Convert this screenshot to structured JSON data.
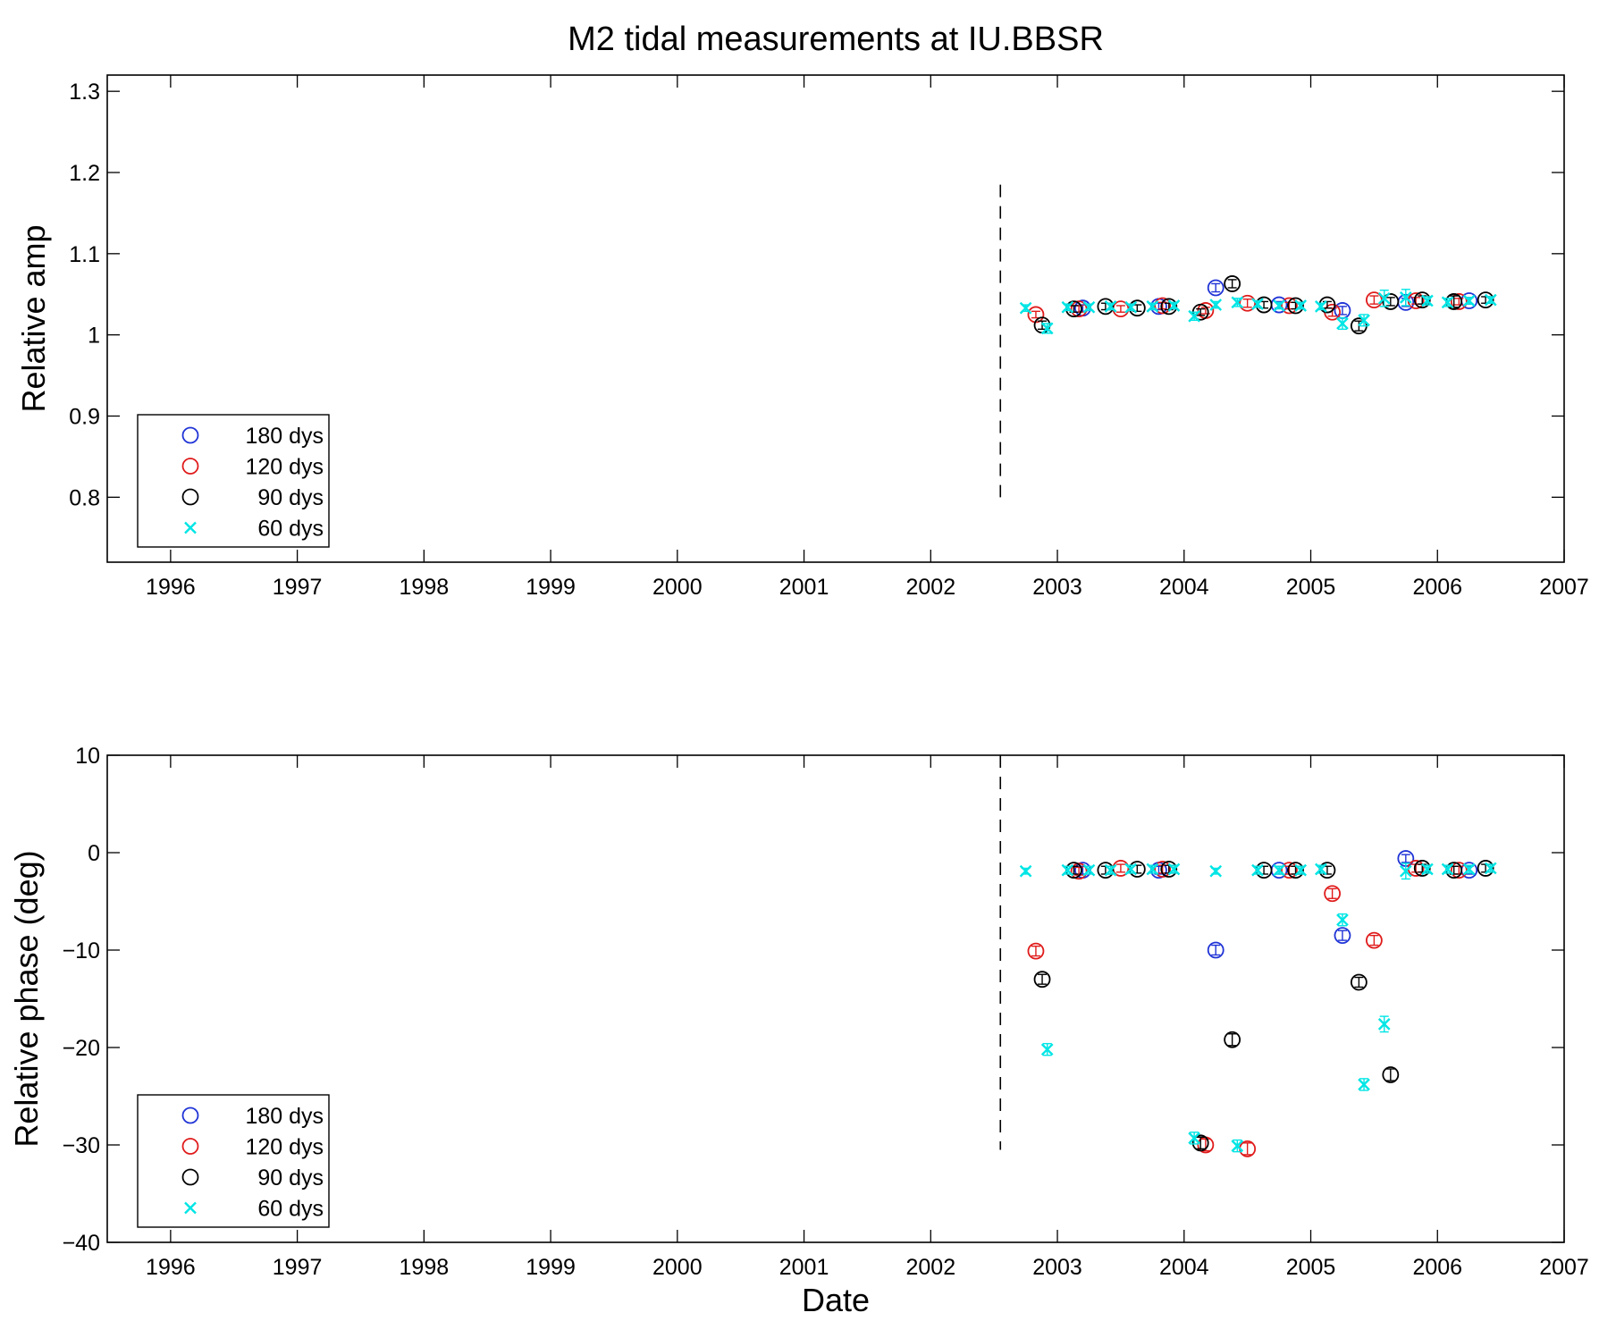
{
  "figure_title": "M2 tidal measurements at IU.BBSR",
  "colors": {
    "180 dys": "#1f33d6",
    "120 dys": "#e01b1b",
    "90 dys": "#000000",
    "60 dys": "#00e5e5"
  },
  "chart_data": [
    {
      "type": "scatter",
      "title": "M2 tidal measurements at IU.BBSR",
      "xlabel": "",
      "ylabel": "Relative amp",
      "xlim": [
        1995.5,
        2007.0
      ],
      "ylim": [
        0.72,
        1.32
      ],
      "x_ticks": [
        "1996",
        "1997",
        "1998",
        "1999",
        "2000",
        "2001",
        "2002",
        "2003",
        "2004",
        "2005",
        "2006",
        "2007"
      ],
      "y_ticks": [
        "0.8",
        "0.9",
        "1",
        "1.1",
        "1.2",
        "1.3"
      ],
      "grid": false,
      "legend": "bottom-left",
      "vertical_dashed_line": {
        "x": 2002.55,
        "y_range": [
          0.8,
          1.185
        ]
      },
      "series": [
        {
          "name": "180 dys",
          "marker": "circle",
          "points": [
            {
              "x": 2003.2,
              "y": 1.033,
              "err": 0.004
            },
            {
              "x": 2003.8,
              "y": 1.035,
              "err": 0.004
            },
            {
              "x": 2004.25,
              "y": 1.058,
              "err": 0.005
            },
            {
              "x": 2004.75,
              "y": 1.037,
              "err": 0.004
            },
            {
              "x": 2005.25,
              "y": 1.03,
              "err": 0.005
            },
            {
              "x": 2005.75,
              "y": 1.04,
              "err": 0.005
            },
            {
              "x": 2006.25,
              "y": 1.042,
              "err": 0.004
            }
          ]
        },
        {
          "name": "120 dys",
          "marker": "circle",
          "points": [
            {
              "x": 2002.83,
              "y": 1.025,
              "err": 0.004
            },
            {
              "x": 2003.17,
              "y": 1.032,
              "err": 0.004
            },
            {
              "x": 2003.5,
              "y": 1.032,
              "err": 0.004
            },
            {
              "x": 2003.83,
              "y": 1.036,
              "err": 0.004
            },
            {
              "x": 2004.17,
              "y": 1.03,
              "err": 0.004
            },
            {
              "x": 2004.5,
              "y": 1.039,
              "err": 0.005
            },
            {
              "x": 2004.83,
              "y": 1.036,
              "err": 0.004
            },
            {
              "x": 2005.17,
              "y": 1.028,
              "err": 0.005
            },
            {
              "x": 2005.5,
              "y": 1.043,
              "err": 0.005
            },
            {
              "x": 2005.83,
              "y": 1.042,
              "err": 0.004
            },
            {
              "x": 2006.17,
              "y": 1.041,
              "err": 0.004
            }
          ]
        },
        {
          "name": "90 dys",
          "marker": "circle",
          "points": [
            {
              "x": 2002.88,
              "y": 1.012,
              "err": 0.005
            },
            {
              "x": 2003.13,
              "y": 1.032,
              "err": 0.004
            },
            {
              "x": 2003.38,
              "y": 1.035,
              "err": 0.004
            },
            {
              "x": 2003.63,
              "y": 1.033,
              "err": 0.004
            },
            {
              "x": 2003.88,
              "y": 1.035,
              "err": 0.004
            },
            {
              "x": 2004.13,
              "y": 1.028,
              "err": 0.004
            },
            {
              "x": 2004.38,
              "y": 1.063,
              "err": 0.005
            },
            {
              "x": 2004.63,
              "y": 1.037,
              "err": 0.004
            },
            {
              "x": 2004.88,
              "y": 1.036,
              "err": 0.004
            },
            {
              "x": 2005.13,
              "y": 1.037,
              "err": 0.004
            },
            {
              "x": 2005.38,
              "y": 1.011,
              "err": 0.006
            },
            {
              "x": 2005.63,
              "y": 1.041,
              "err": 0.005
            },
            {
              "x": 2005.88,
              "y": 1.043,
              "err": 0.005
            },
            {
              "x": 2006.13,
              "y": 1.041,
              "err": 0.007
            },
            {
              "x": 2006.38,
              "y": 1.043,
              "err": 0.004
            }
          ]
        },
        {
          "name": "60 dys",
          "marker": "x",
          "points": [
            {
              "x": 2002.75,
              "y": 1.033,
              "err": 0.004
            },
            {
              "x": 2002.92,
              "y": 1.008,
              "err": 0.006
            },
            {
              "x": 2003.08,
              "y": 1.034,
              "err": 0.004
            },
            {
              "x": 2003.25,
              "y": 1.034,
              "err": 0.004
            },
            {
              "x": 2003.42,
              "y": 1.035,
              "err": 0.004
            },
            {
              "x": 2003.58,
              "y": 1.034,
              "err": 0.004
            },
            {
              "x": 2003.75,
              "y": 1.035,
              "err": 0.004
            },
            {
              "x": 2003.92,
              "y": 1.036,
              "err": 0.004
            },
            {
              "x": 2004.08,
              "y": 1.023,
              "err": 0.005
            },
            {
              "x": 2004.25,
              "y": 1.037,
              "err": 0.004
            },
            {
              "x": 2004.42,
              "y": 1.04,
              "err": 0.005
            },
            {
              "x": 2004.58,
              "y": 1.038,
              "err": 0.004
            },
            {
              "x": 2004.75,
              "y": 1.036,
              "err": 0.004
            },
            {
              "x": 2004.92,
              "y": 1.036,
              "err": 0.004
            },
            {
              "x": 2005.08,
              "y": 1.035,
              "err": 0.004
            },
            {
              "x": 2005.25,
              "y": 1.014,
              "err": 0.007
            },
            {
              "x": 2005.42,
              "y": 1.018,
              "err": 0.007
            },
            {
              "x": 2005.58,
              "y": 1.045,
              "err": 0.01
            },
            {
              "x": 2005.75,
              "y": 1.046,
              "err": 0.01
            },
            {
              "x": 2005.92,
              "y": 1.042,
              "err": 0.005
            },
            {
              "x": 2006.08,
              "y": 1.04,
              "err": 0.005
            },
            {
              "x": 2006.25,
              "y": 1.042,
              "err": 0.004
            },
            {
              "x": 2006.42,
              "y": 1.043,
              "err": 0.004
            }
          ]
        }
      ]
    },
    {
      "type": "scatter",
      "title": "",
      "xlabel": "Date",
      "ylabel": "Relative phase (deg)",
      "xlim": [
        1995.5,
        2007.0
      ],
      "ylim": [
        -40,
        10
      ],
      "x_ticks": [
        "1996",
        "1997",
        "1998",
        "1999",
        "2000",
        "2001",
        "2002",
        "2003",
        "2004",
        "2005",
        "2006",
        "2007"
      ],
      "y_ticks": [
        "−40",
        "−30",
        "−20",
        "−10",
        "0",
        "10"
      ],
      "grid": false,
      "legend": "bottom-left",
      "vertical_dashed_line": {
        "x": 2002.55,
        "y_range": [
          -30.5,
          10
        ]
      },
      "series": [
        {
          "name": "180 dys",
          "marker": "circle",
          "points": [
            {
              "x": 2003.2,
              "y": -1.8,
              "err": 0.4
            },
            {
              "x": 2003.8,
              "y": -1.8,
              "err": 0.4
            },
            {
              "x": 2004.25,
              "y": -10.0,
              "err": 0.5
            },
            {
              "x": 2004.75,
              "y": -1.8,
              "err": 0.4
            },
            {
              "x": 2005.25,
              "y": -8.5,
              "err": 0.5
            },
            {
              "x": 2005.75,
              "y": -0.6,
              "err": 0.4
            },
            {
              "x": 2006.25,
              "y": -1.8,
              "err": 0.4
            }
          ]
        },
        {
          "name": "120 dys",
          "marker": "circle",
          "points": [
            {
              "x": 2002.83,
              "y": -10.1,
              "err": 0.5
            },
            {
              "x": 2003.17,
              "y": -1.9,
              "err": 0.4
            },
            {
              "x": 2003.5,
              "y": -1.6,
              "err": 0.4
            },
            {
              "x": 2003.83,
              "y": -1.7,
              "err": 0.4
            },
            {
              "x": 2004.17,
              "y": -30.0,
              "err": 0.6
            },
            {
              "x": 2004.5,
              "y": -30.4,
              "err": 0.6
            },
            {
              "x": 2004.83,
              "y": -1.8,
              "err": 0.4
            },
            {
              "x": 2005.17,
              "y": -4.2,
              "err": 0.5
            },
            {
              "x": 2005.5,
              "y": -9.0,
              "err": 0.5
            },
            {
              "x": 2005.83,
              "y": -1.6,
              "err": 0.4
            },
            {
              "x": 2006.17,
              "y": -1.8,
              "err": 0.4
            }
          ]
        },
        {
          "name": "90 dys",
          "marker": "circle",
          "points": [
            {
              "x": 2002.88,
              "y": -13.0,
              "err": 0.5
            },
            {
              "x": 2003.13,
              "y": -1.8,
              "err": 0.4
            },
            {
              "x": 2003.38,
              "y": -1.8,
              "err": 0.4
            },
            {
              "x": 2003.63,
              "y": -1.7,
              "err": 0.4
            },
            {
              "x": 2003.88,
              "y": -1.7,
              "err": 0.4
            },
            {
              "x": 2004.13,
              "y": -29.8,
              "err": 0.6
            },
            {
              "x": 2004.38,
              "y": -19.2,
              "err": 0.6
            },
            {
              "x": 2004.63,
              "y": -1.8,
              "err": 0.4
            },
            {
              "x": 2004.88,
              "y": -1.8,
              "err": 0.4
            },
            {
              "x": 2005.13,
              "y": -1.8,
              "err": 0.4
            },
            {
              "x": 2005.38,
              "y": -13.3,
              "err": 0.5
            },
            {
              "x": 2005.63,
              "y": -22.8,
              "err": 0.6
            },
            {
              "x": 2005.88,
              "y": -1.6,
              "err": 0.4
            },
            {
              "x": 2006.13,
              "y": -1.8,
              "err": 0.4
            },
            {
              "x": 2006.38,
              "y": -1.6,
              "err": 0.4
            }
          ]
        },
        {
          "name": "60 dys",
          "marker": "x",
          "points": [
            {
              "x": 2002.75,
              "y": -1.9,
              "err": 0.3
            },
            {
              "x": 2002.92,
              "y": -20.2,
              "err": 0.6
            },
            {
              "x": 2003.08,
              "y": -1.8,
              "err": 0.4
            },
            {
              "x": 2003.25,
              "y": -1.8,
              "err": 0.4
            },
            {
              "x": 2003.42,
              "y": -1.8,
              "err": 0.4
            },
            {
              "x": 2003.58,
              "y": -1.7,
              "err": 0.4
            },
            {
              "x": 2003.75,
              "y": -1.7,
              "err": 0.4
            },
            {
              "x": 2003.92,
              "y": -1.7,
              "err": 0.4
            },
            {
              "x": 2004.08,
              "y": -29.3,
              "err": 0.6
            },
            {
              "x": 2004.25,
              "y": -1.9,
              "err": 0.3
            },
            {
              "x": 2004.42,
              "y": -30.1,
              "err": 0.6
            },
            {
              "x": 2004.58,
              "y": -1.8,
              "err": 0.4
            },
            {
              "x": 2004.75,
              "y": -1.8,
              "err": 0.4
            },
            {
              "x": 2004.92,
              "y": -1.8,
              "err": 0.4
            },
            {
              "x": 2005.08,
              "y": -1.7,
              "err": 0.4
            },
            {
              "x": 2005.25,
              "y": -6.9,
              "err": 0.6
            },
            {
              "x": 2005.42,
              "y": -23.8,
              "err": 0.6
            },
            {
              "x": 2005.58,
              "y": -17.6,
              "err": 0.8
            },
            {
              "x": 2005.75,
              "y": -1.9,
              "err": 0.8
            },
            {
              "x": 2005.92,
              "y": -1.7,
              "err": 0.4
            },
            {
              "x": 2006.08,
              "y": -1.7,
              "err": 0.4
            },
            {
              "x": 2006.25,
              "y": -1.7,
              "err": 0.4
            },
            {
              "x": 2006.42,
              "y": -1.6,
              "err": 0.4
            }
          ]
        }
      ]
    }
  ]
}
